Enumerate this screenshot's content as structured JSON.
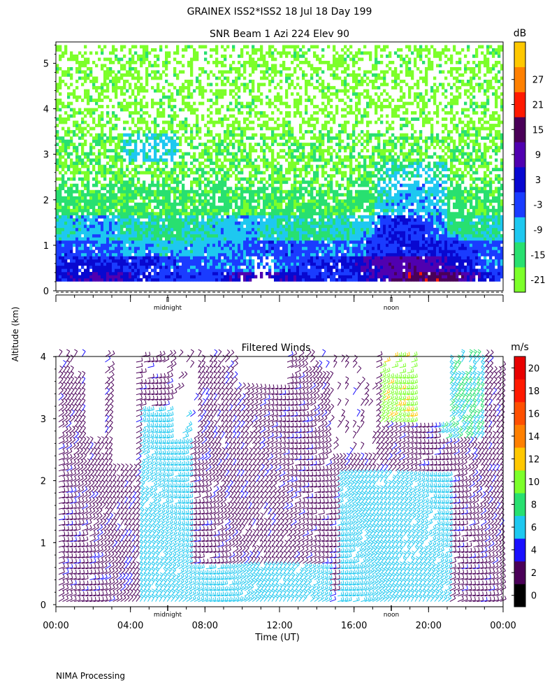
{
  "header": {
    "title": "GRAINEX ISS2*ISS2  18 Jul 18 Day 199"
  },
  "footer": {
    "processing": "NIMA Processing"
  },
  "shared": {
    "ylabel": "Altitude (km)",
    "xlabel": "Time (UT)"
  },
  "chart_data": [
    {
      "type": "heatmap",
      "title": "SNR Beam 1 Azi 224 Elev 90",
      "ylabel": "Altitude (km)",
      "yticks": [
        "0",
        "1",
        "2",
        "3",
        "4",
        "5"
      ],
      "ylim": [
        0,
        5.5
      ],
      "xlim": [
        0,
        24
      ],
      "time_markers": [
        {
          "x": 6,
          "label": "midnight"
        },
        {
          "x": 18,
          "label": "noon"
        }
      ],
      "colorbar": {
        "unit": "dB",
        "bounds": [
          -24,
          -18,
          -12,
          -6,
          0,
          6,
          12,
          18,
          24,
          30,
          33
        ],
        "tick_labels": [
          "-21",
          "-15",
          "-9",
          "-3",
          "3",
          "9",
          "15",
          "21",
          "27"
        ],
        "colors": [
          "#7cff2a",
          "#28e070",
          "#1ec8f0",
          "#1a3cff",
          "#0808d0",
          "#5000b0",
          "#4a0058",
          "#ff1a00",
          "#ff8000",
          "#ffc800"
        ]
      },
      "series": [
        {
          "region": "0-1.5 km",
          "dominant_snr_db": -3
        },
        {
          "region": "1.5-3.5 km",
          "dominant_snr_db": -18
        },
        {
          "region": "3.5-5.5 km",
          "dominant_snr_db": -21
        }
      ]
    },
    {
      "type": "scatter",
      "title": "Filtered Winds",
      "ylabel": "Altitude (km)",
      "xlabel": "Time (UT)",
      "xticks": [
        "00:00",
        "04:00",
        "08:00",
        "12:00",
        "16:00",
        "20:00",
        "00:00"
      ],
      "yticks": [
        "0",
        "1",
        "2",
        "3",
        "4"
      ],
      "xlim": [
        0,
        24
      ],
      "ylim": [
        0,
        4
      ],
      "time_markers": [
        {
          "x": 6,
          "label": "midnight"
        },
        {
          "x": 18,
          "label": "noon"
        }
      ],
      "colorbar": {
        "unit": "m/s",
        "bounds": [
          0,
          2,
          4,
          6,
          8,
          10,
          12,
          14,
          16,
          18,
          20,
          22
        ],
        "tick_labels": [
          "0",
          "2",
          "4",
          "6",
          "8",
          "10",
          "12",
          "14",
          "16",
          "18",
          "20"
        ],
        "colors": [
          "#000000",
          "#4a0058",
          "#1a10ff",
          "#1ec8f0",
          "#28e070",
          "#7cff2a",
          "#ffc800",
          "#ff8000",
          "#ff5000",
          "#ff1a00",
          "#e80000"
        ]
      },
      "series": [
        {
          "region": "00:00-04:00 0-4 km",
          "speed_ms": [
            2,
            4
          ]
        },
        {
          "region": "04:30-07:00 0-3 km",
          "speed_ms": [
            6,
            8
          ]
        },
        {
          "region": "07:00-15:00 0-4 km",
          "speed_ms": [
            2,
            4
          ]
        },
        {
          "region": "15:00-21:00 0-2 km",
          "speed_ms": [
            6,
            8
          ]
        },
        {
          "region": "17:30-19:00 3-4 km",
          "speed_ms": [
            10,
            12
          ]
        }
      ]
    }
  ]
}
